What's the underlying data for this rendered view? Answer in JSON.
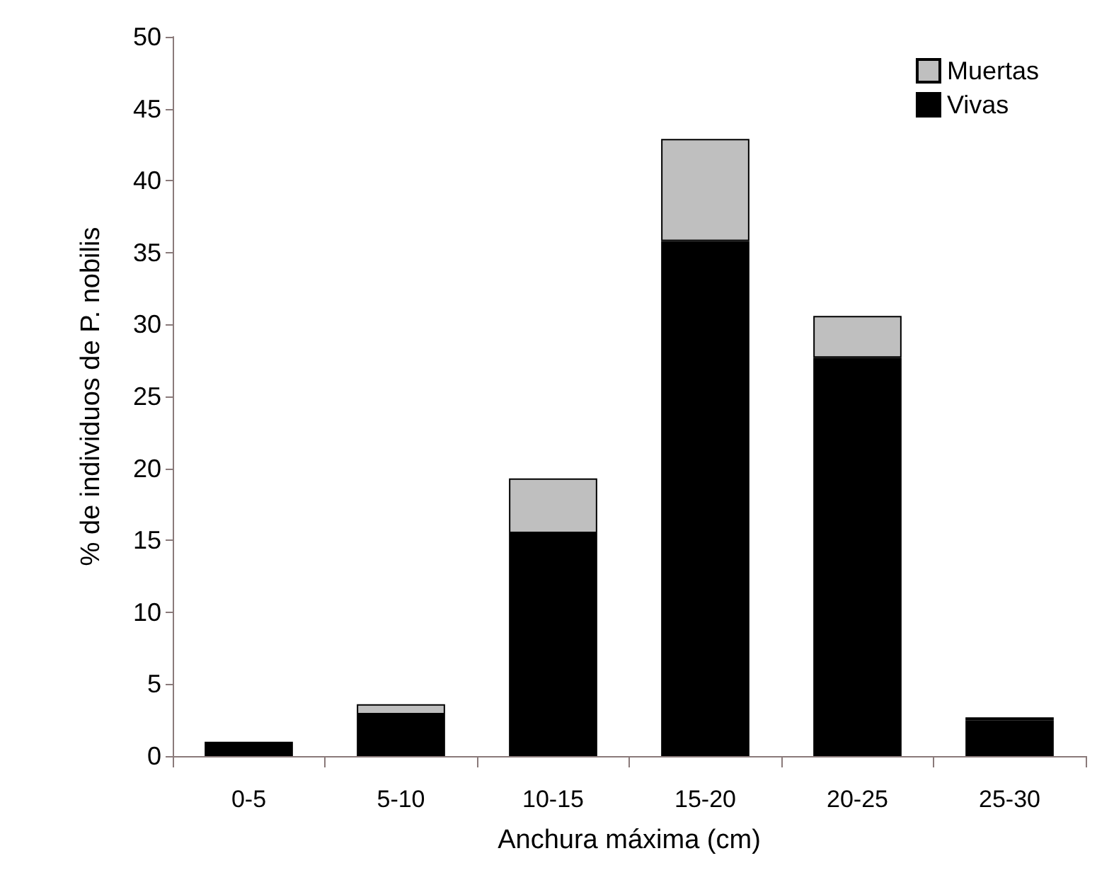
{
  "chart_data": {
    "type": "bar",
    "stacked": true,
    "xlabel": "Anchura máxima (cm)",
    "ylabel": "% de individuos de P. nobilis",
    "categories": [
      "0-5",
      "5-10",
      "10-15",
      "15-20",
      "20-25",
      "25-30"
    ],
    "series": [
      {
        "name": "Vivas",
        "color": "#000000",
        "values": [
          1.0,
          2.9,
          15.5,
          35.8,
          27.7,
          2.5
        ]
      },
      {
        "name": "Muertas",
        "color": "#bfbfbf",
        "values": [
          null,
          0.7,
          3.8,
          7.1,
          2.9,
          0.2
        ]
      }
    ],
    "ylim": [
      0,
      50
    ],
    "yticks": [
      0,
      5,
      10,
      15,
      20,
      25,
      30,
      35,
      40,
      45,
      50
    ],
    "grid": false,
    "legend": "top right"
  }
}
